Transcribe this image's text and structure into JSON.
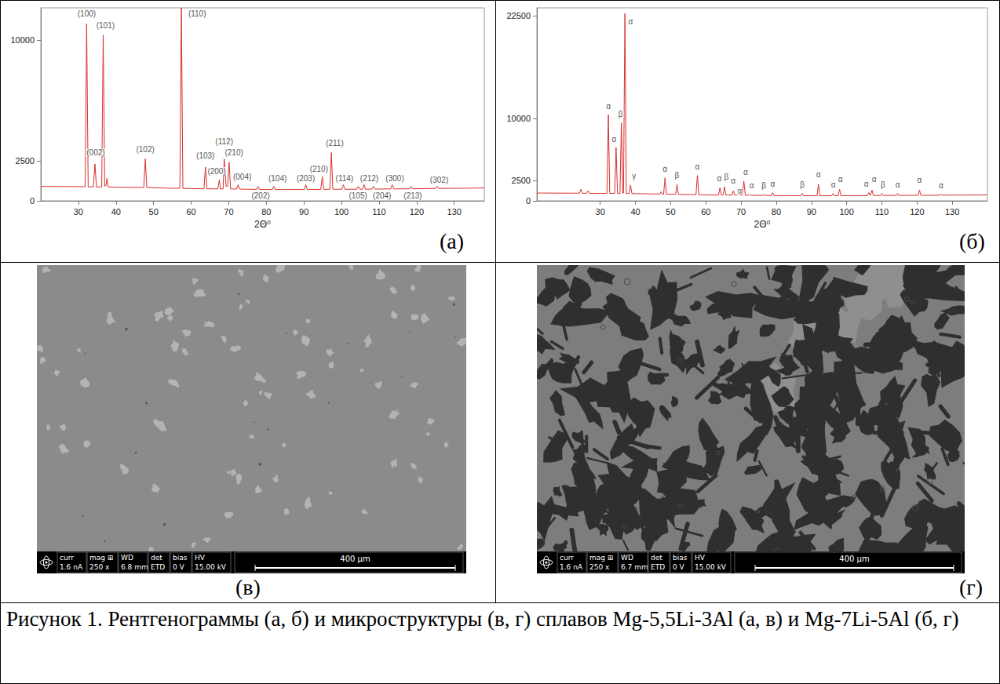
{
  "chart_data": [
    {
      "type": "line",
      "panel_label": "(а)",
      "x_label": "2Θ⁰",
      "color": "#d9302c",
      "grid": false,
      "xlim": [
        20,
        138
      ],
      "xticks": [
        30,
        40,
        50,
        60,
        70,
        80,
        90,
        100,
        110,
        120,
        130
      ],
      "ylim": [
        0,
        12000
      ],
      "yticks": [
        0,
        2500,
        10000
      ],
      "x": [
        20,
        30,
        31.8,
        32.2,
        32.6,
        34,
        34.4,
        34.8,
        36.2,
        36.6,
        37,
        37.4,
        37.6,
        37.9,
        45,
        47.4,
        47.8,
        48.2,
        55,
        57,
        57.4,
        57.8,
        60,
        63.4,
        63.8,
        64.2,
        67.1,
        67.5,
        67.8,
        68.5,
        68.8,
        69.3,
        69.7,
        70.1,
        70.5,
        72.1,
        72.5,
        72.9,
        77.4,
        77.8,
        78.2,
        81.6,
        82,
        82.4,
        90.1,
        90.5,
        90.9,
        94.5,
        94.9,
        95.3,
        96.9,
        97.3,
        97.7,
        100.1,
        100.5,
        100.9,
        104.1,
        104.5,
        104.9,
        105.6,
        106,
        106.4,
        108.1,
        108.5,
        108.9,
        113.1,
        113.5,
        113.9,
        118.1,
        118.5,
        118.9,
        125.1,
        125.5,
        125.9,
        132,
        138
      ],
      "values": [
        900,
        880,
        880,
        11000,
        870,
        870,
        2300,
        860,
        860,
        10300,
        900,
        1000,
        1400,
        860,
        830,
        830,
        2600,
        820,
        780,
        780,
        12000,
        770,
        760,
        750,
        2100,
        750,
        740,
        1300,
        740,
        740,
        2600,
        900,
        900,
        2400,
        740,
        730,
        1000,
        730,
        710,
        900,
        710,
        700,
        900,
        700,
        700,
        1000,
        700,
        710,
        1500,
        710,
        720,
        3000,
        720,
        720,
        1000,
        720,
        720,
        900,
        720,
        720,
        1000,
        720,
        730,
        900,
        730,
        740,
        1000,
        740,
        750,
        900,
        750,
        770,
        900,
        770,
        780,
        800
      ],
      "annotations": [
        {
          "text": "(100)",
          "x": 32.2,
          "y": 11650
        },
        {
          "text": "(101)",
          "x": 37.2,
          "y": 10900
        },
        {
          "text": "(002)",
          "x": 34.6,
          "y": 3000
        },
        {
          "text": "(102)",
          "x": 47.8,
          "y": 3200
        },
        {
          "text": "(110)",
          "x": 61.6,
          "y": 11650
        },
        {
          "text": "(103)",
          "x": 63.8,
          "y": 2800
        },
        {
          "text": "(200)",
          "x": 66.8,
          "y": 1850
        },
        {
          "text": "(112)",
          "x": 68.8,
          "y": 3700
        },
        {
          "text": "(210)",
          "x": 71.4,
          "y": 3000
        },
        {
          "text": "(004)",
          "x": 73.6,
          "y": 1500
        },
        {
          "text": "(202)",
          "x": 78.5,
          "y": 300
        },
        {
          "text": "(104)",
          "x": 83,
          "y": 1400
        },
        {
          "text": "(203)",
          "x": 90.5,
          "y": 1400
        },
        {
          "text": "(210)",
          "x": 94,
          "y": 2000
        },
        {
          "text": "(211)",
          "x": 98.2,
          "y": 3600
        },
        {
          "text": "(114)",
          "x": 100.8,
          "y": 1400
        },
        {
          "text": "(105)",
          "x": 104.4,
          "y": 300
        },
        {
          "text": "(212)",
          "x": 107.4,
          "y": 1400
        },
        {
          "text": "(204)",
          "x": 110.8,
          "y": 300
        },
        {
          "text": "(300)",
          "x": 114.2,
          "y": 1400
        },
        {
          "text": "(213)",
          "x": 119,
          "y": 300
        },
        {
          "text": "(302)",
          "x": 126,
          "y": 1300
        }
      ]
    },
    {
      "type": "line",
      "panel_label": "(б)",
      "x_label": "2Θ⁰",
      "color": "#d9302c",
      "grid": false,
      "xlim": [
        12,
        140
      ],
      "xticks": [
        30,
        40,
        50,
        60,
        70,
        80,
        90,
        100,
        110,
        120,
        130
      ],
      "ylim": [
        0,
        23500
      ],
      "yticks": [
        0,
        2500,
        10000,
        22500
      ],
      "x": [
        12,
        22,
        24.1,
        24.5,
        24.9,
        26.1,
        26.5,
        26.9,
        31.9,
        32.3,
        32.7,
        34.1,
        34.5,
        34.9,
        35.6,
        36,
        36.4,
        36.6,
        37,
        37.4,
        38.2,
        38.6,
        39,
        46.9,
        47.3,
        47.6,
        48,
        48.4,
        48.8,
        51.4,
        51.8,
        52.2,
        57.2,
        57.6,
        58,
        63.6,
        64,
        64.4,
        64.9,
        65.3,
        65.7,
        67.4,
        67.8,
        68.2,
        68.9,
        69.3,
        69.7,
        70.4,
        70.8,
        71.2,
        72.1,
        72.5,
        72.9,
        76.1,
        76.5,
        76.9,
        78.6,
        79,
        79.4,
        87,
        87.4,
        87.8,
        91.6,
        92,
        92.4,
        95.8,
        96.2,
        96.6,
        97.6,
        98,
        98.4,
        105.9,
        106.3,
        106.7,
        106.8,
        107.2,
        107.6,
        109.6,
        110,
        110.4,
        114.1,
        114.5,
        114.9,
        120.3,
        120.7,
        121.1,
        126.4,
        126.8,
        127.2,
        140
      ],
      "values": [
        950,
        930,
        930,
        1400,
        920,
        920,
        1200,
        910,
        900,
        10500,
        900,
        900,
        6500,
        900,
        900,
        9500,
        950,
        950,
        22800,
        900,
        900,
        1900,
        880,
        820,
        1100,
        810,
        810,
        2800,
        800,
        790,
        2000,
        780,
        750,
        3100,
        740,
        700,
        1600,
        700,
        700,
        1700,
        700,
        690,
        1200,
        690,
        690,
        900,
        680,
        680,
        2400,
        680,
        670,
        800,
        660,
        650,
        800,
        650,
        640,
        1000,
        640,
        620,
        900,
        620,
        620,
        2000,
        620,
        620,
        900,
        620,
        630,
        1400,
        630,
        640,
        1000,
        640,
        640,
        1300,
        640,
        650,
        900,
        650,
        660,
        900,
        660,
        670,
        1300,
        670,
        680,
        800,
        680,
        720
      ],
      "annotations": [
        {
          "text": "α",
          "x": 32.3,
          "y": 11500
        },
        {
          "text": "α",
          "x": 33.9,
          "y": 7500
        },
        {
          "text": "β",
          "x": 35.8,
          "y": 10600
        },
        {
          "text": "α",
          "x": 38.6,
          "y": 21800
        },
        {
          "text": "γ",
          "x": 39.6,
          "y": 3000
        },
        {
          "text": "α",
          "x": 48.4,
          "y": 3900
        },
        {
          "text": "β",
          "x": 51.8,
          "y": 3100
        },
        {
          "text": "α",
          "x": 57.6,
          "y": 4200
        },
        {
          "text": "α",
          "x": 63.8,
          "y": 2700
        },
        {
          "text": "β",
          "x": 65.8,
          "y": 2900
        },
        {
          "text": "α",
          "x": 67.8,
          "y": 2400
        },
        {
          "text": "α",
          "x": 69.6,
          "y": 1200
        },
        {
          "text": "α",
          "x": 71.3,
          "y": 3500
        },
        {
          "text": "α",
          "x": 73,
          "y": 1900
        },
        {
          "text": "β",
          "x": 76.5,
          "y": 1900
        },
        {
          "text": "α",
          "x": 79,
          "y": 2100
        },
        {
          "text": "β",
          "x": 87.4,
          "y": 2000
        },
        {
          "text": "α",
          "x": 92,
          "y": 3200
        },
        {
          "text": "α",
          "x": 96.2,
          "y": 2000
        },
        {
          "text": "α",
          "x": 98.2,
          "y": 2600
        },
        {
          "text": "α",
          "x": 105.6,
          "y": 2100
        },
        {
          "text": "α",
          "x": 107.8,
          "y": 2600
        },
        {
          "text": "β",
          "x": 110.3,
          "y": 2000
        },
        {
          "text": "α",
          "x": 114.5,
          "y": 2000
        },
        {
          "text": "α",
          "x": 120.7,
          "y": 2500
        },
        {
          "text": "α",
          "x": 126.8,
          "y": 1900
        }
      ]
    }
  ],
  "micrographs": [
    {
      "panel_label": "(в)",
      "scale_bar": "400 µm",
      "info": [
        {
          "label": "curr",
          "value": "1.6 nA"
        },
        {
          "label": "mag ⊞",
          "value": "250 x"
        },
        {
          "label": "WD",
          "value": "6.8 mm"
        },
        {
          "label": "det",
          "value": "ETD"
        },
        {
          "label": "bias",
          "value": "0 V"
        },
        {
          "label": "HV",
          "value": "15.00 kV"
        }
      ]
    },
    {
      "panel_label": "(г)",
      "scale_bar": "400 µm",
      "info": [
        {
          "label": "curr",
          "value": "1.6 nA"
        },
        {
          "label": "mag ⊞",
          "value": "250 x"
        },
        {
          "label": "WD",
          "value": "6.7 mm"
        },
        {
          "label": "det",
          "value": "ETD"
        },
        {
          "label": "bias",
          "value": "0 V"
        },
        {
          "label": "HV",
          "value": "15.00 kV"
        }
      ]
    }
  ],
  "caption": "Рисунок 1. Рентгенограммы (а, б) и микроструктуры (в, г) сплавов Mg-5,5Li-3Al (а, в) и Mg-7Li-5Al (б, г)"
}
